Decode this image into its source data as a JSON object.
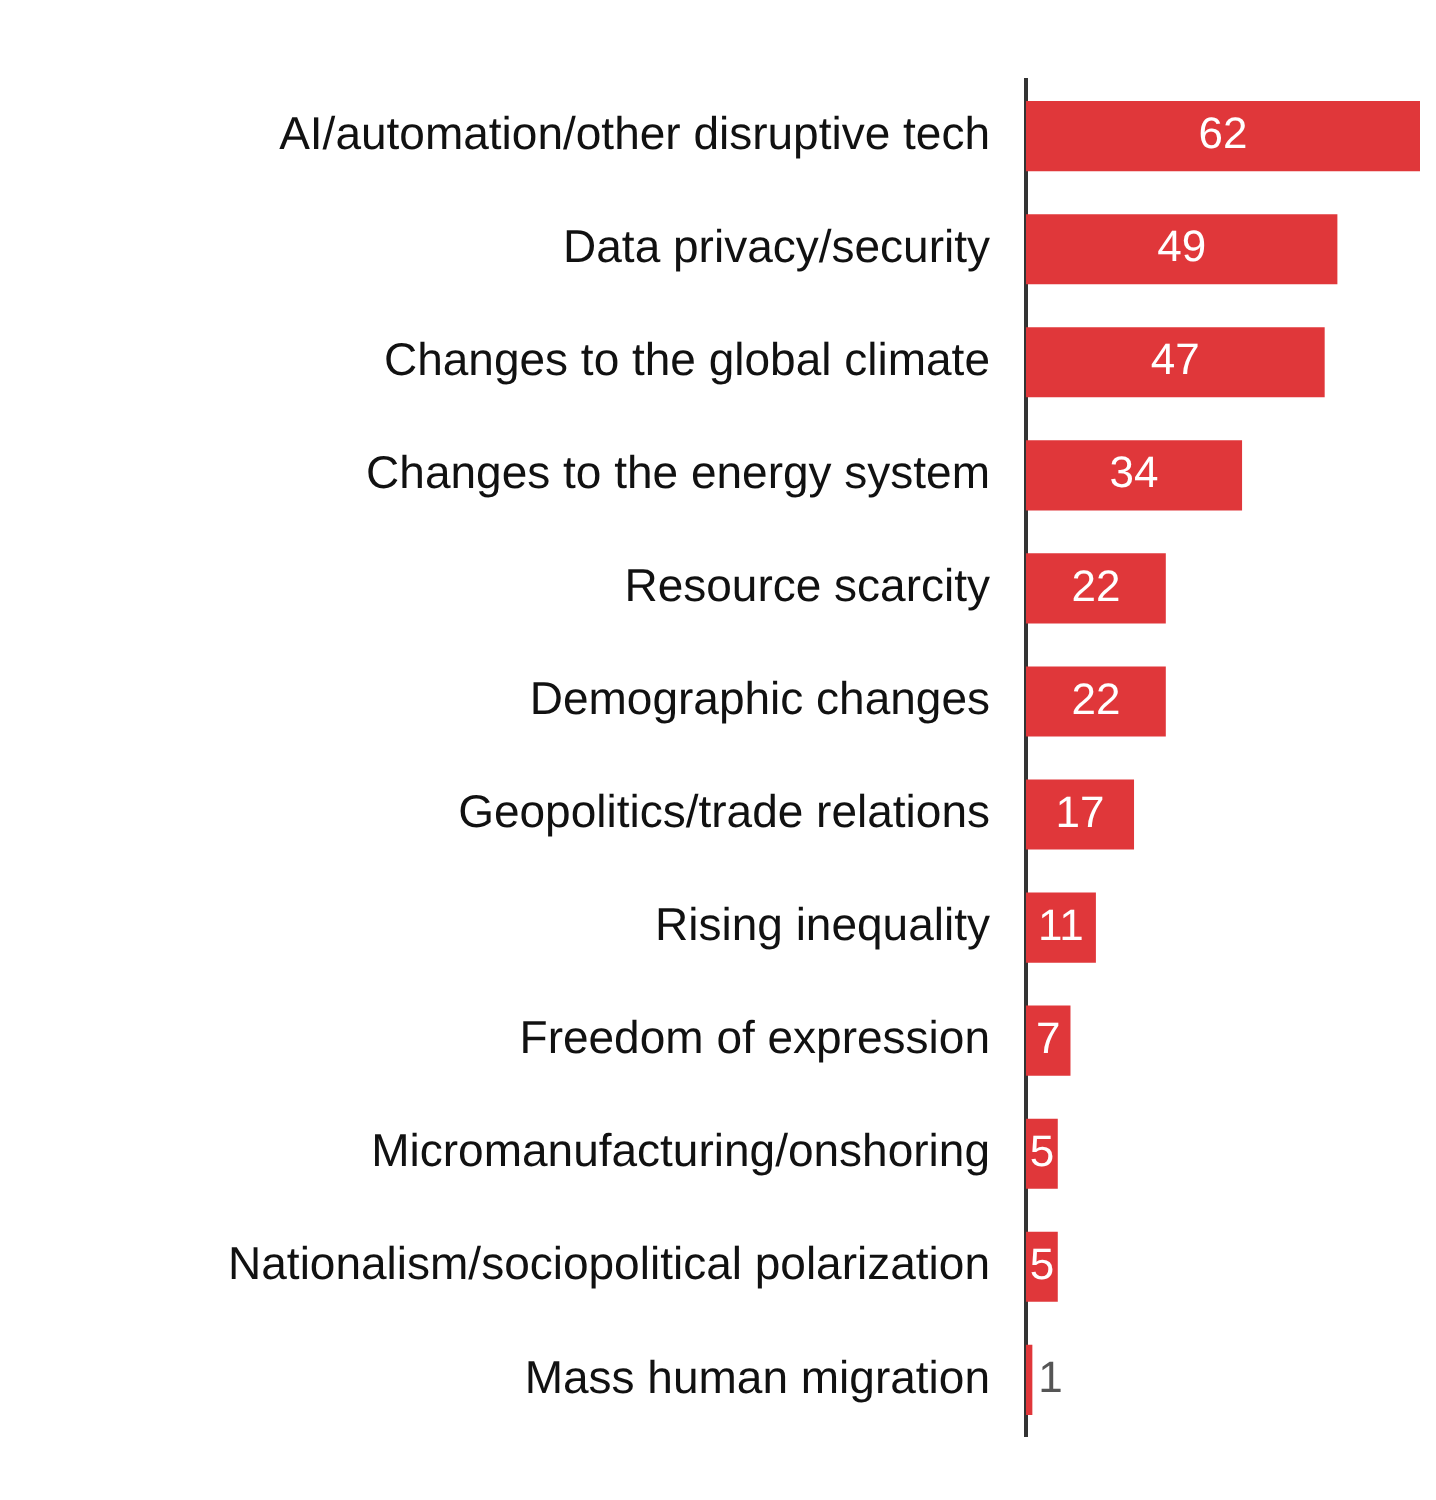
{
  "chart_data": {
    "type": "bar",
    "orientation": "horizontal",
    "categories": [
      "AI/automation/other disruptive tech",
      "Data privacy/security",
      "Changes to the global climate",
      "Changes to the energy system",
      "Resource scarcity",
      "Demographic changes",
      "Geopolitics/trade relations",
      "Rising inequality",
      "Freedom of expression",
      "Micromanufacturing/onshoring",
      "Nationalism/sociopolitical polarization",
      "Mass human migration"
    ],
    "values": [
      62,
      49,
      47,
      34,
      22,
      22,
      17,
      11,
      7,
      5,
      5,
      1
    ],
    "color": "#e0373a",
    "data_labels": true,
    "grid": false,
    "legend": false,
    "tick_labels": "y"
  }
}
